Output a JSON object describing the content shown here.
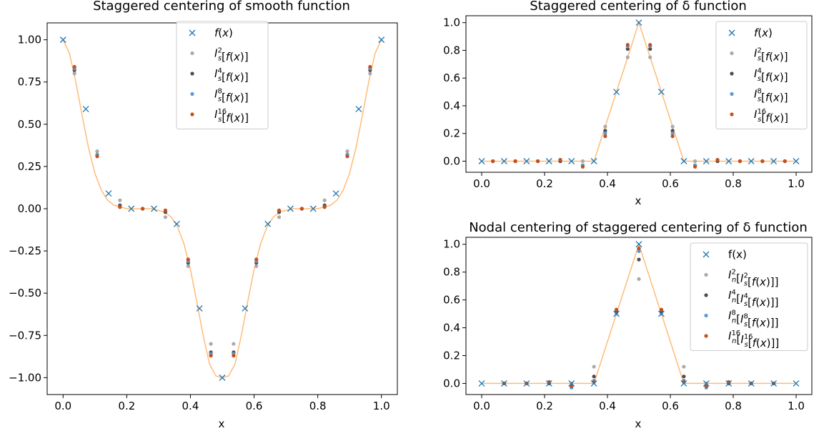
{
  "colors": {
    "curve": "#ffbb78",
    "fx": "#1f77b4",
    "lvl2": "#aaaaaa",
    "lvl4": "#4d4d4d",
    "lvl8": "#5b9bd5",
    "lvl16": "#c6501a"
  },
  "chart_data": [
    {
      "type": "scatter",
      "title": "Staggered centering of smooth function",
      "xlabel": "x",
      "ylabel": "",
      "xlim": [
        -0.05,
        1.05
      ],
      "ylim": [
        -1.1,
        1.1
      ],
      "xticks": [
        0.0,
        0.2,
        0.4,
        0.6,
        0.8,
        1.0
      ],
      "xtick_labels": [
        "0.0",
        "0.2",
        "0.4",
        "0.6",
        "0.8",
        "1.0"
      ],
      "yticks": [
        -1.0,
        -0.75,
        -0.5,
        -0.25,
        0.0,
        0.25,
        0.5,
        0.75,
        1.0
      ],
      "ytick_labels": [
        "−1.00",
        "−0.75",
        "−0.50",
        "−0.25",
        "0.00",
        "0.25",
        "0.50",
        "0.75",
        "1.00"
      ],
      "grid": false,
      "legend_position": "top-center",
      "legend": [
        "f(x)",
        "I_s^2[f(x)]",
        "I_s^4[f(x)]",
        "I_s^8[f(x)]",
        "I_s^16[f(x)]"
      ],
      "curve": {
        "x": [
          0.0,
          0.02,
          0.04,
          0.06,
          0.08,
          0.1,
          0.12,
          0.14,
          0.16,
          0.18,
          0.2,
          0.22,
          0.24,
          0.26,
          0.28,
          0.3,
          0.32,
          0.34,
          0.36,
          0.38,
          0.4,
          0.42,
          0.44,
          0.46,
          0.48,
          0.5,
          0.52,
          0.54,
          0.56,
          0.58,
          0.6,
          0.62,
          0.64,
          0.66,
          0.68,
          0.7,
          0.72,
          0.74,
          0.76,
          0.78,
          0.8,
          0.82,
          0.84,
          0.86,
          0.88,
          0.9,
          0.92,
          0.94,
          0.96,
          0.98,
          1.0
        ],
        "y": [
          1.0,
          0.92,
          0.75,
          0.55,
          0.36,
          0.21,
          0.11,
          0.05,
          0.02,
          0.01,
          0.0,
          0.0,
          0.0,
          0.0,
          0.0,
          -0.01,
          -0.02,
          -0.05,
          -0.11,
          -0.21,
          -0.36,
          -0.55,
          -0.75,
          -0.92,
          -0.99,
          -1.0,
          -0.99,
          -0.92,
          -0.75,
          -0.55,
          -0.36,
          -0.21,
          -0.11,
          -0.05,
          -0.02,
          -0.01,
          0.0,
          0.0,
          0.0,
          0.0,
          0.0,
          0.01,
          0.02,
          0.05,
          0.11,
          0.21,
          0.36,
          0.55,
          0.75,
          0.92,
          1.0
        ]
      },
      "series": [
        {
          "name": "f(x)",
          "marker": "x",
          "color_key": "fx",
          "x": [
            0.0,
            0.0714,
            0.1429,
            0.2143,
            0.2857,
            0.3571,
            0.4286,
            0.5,
            0.5714,
            0.6429,
            0.7143,
            0.7857,
            0.8571,
            0.9286,
            1.0
          ],
          "y": [
            1.0,
            0.59,
            0.09,
            0.0,
            0.0,
            -0.09,
            -0.59,
            -1.0,
            -0.59,
            -0.09,
            0.0,
            0.0,
            0.09,
            0.59,
            1.0
          ]
        },
        {
          "name": "I_s^2[f(x)]",
          "marker": "dot",
          "color_key": "lvl2",
          "x": [
            0.0357,
            0.1071,
            0.1786,
            0.25,
            0.3214,
            0.3929,
            0.4643,
            0.5357,
            0.6071,
            0.6786,
            0.75,
            0.8214,
            0.8929,
            0.9643
          ],
          "y": [
            0.8,
            0.34,
            0.05,
            0.0,
            -0.05,
            -0.34,
            -0.8,
            -0.8,
            -0.34,
            -0.05,
            0.0,
            0.05,
            0.34,
            0.8
          ]
        },
        {
          "name": "I_s^4[f(x)]",
          "marker": "dot",
          "color_key": "lvl4",
          "x": [
            0.0357,
            0.1071,
            0.1786,
            0.25,
            0.3214,
            0.3929,
            0.4643,
            0.5357,
            0.6071,
            0.6786,
            0.75,
            0.8214,
            0.8929,
            0.9643
          ],
          "y": [
            0.82,
            0.32,
            0.02,
            0.0,
            -0.02,
            -0.32,
            -0.85,
            -0.85,
            -0.32,
            -0.02,
            0.0,
            0.02,
            0.32,
            0.82
          ]
        },
        {
          "name": "I_s^8[f(x)]",
          "marker": "dot",
          "color_key": "lvl8",
          "x": [
            0.0357,
            0.1071,
            0.1786,
            0.25,
            0.3214,
            0.3929,
            0.4643,
            0.5357,
            0.6071,
            0.6786,
            0.75,
            0.8214,
            0.8929,
            0.9643
          ],
          "y": [
            0.83,
            0.32,
            0.01,
            0.0,
            -0.01,
            -0.31,
            -0.86,
            -0.86,
            -0.31,
            -0.01,
            0.0,
            0.01,
            0.32,
            0.83
          ]
        },
        {
          "name": "I_s^16[f(x)]",
          "marker": "dot",
          "color_key": "lvl16",
          "x": [
            0.0357,
            0.1071,
            0.1786,
            0.25,
            0.3214,
            0.3929,
            0.4643,
            0.5357,
            0.6071,
            0.6786,
            0.75,
            0.8214,
            0.8929,
            0.9643
          ],
          "y": [
            0.84,
            0.31,
            0.01,
            0.0,
            -0.01,
            -0.3,
            -0.87,
            -0.87,
            -0.3,
            -0.01,
            0.0,
            0.01,
            0.31,
            0.84
          ]
        }
      ]
    },
    {
      "type": "scatter",
      "title": "Staggered centering of δ function",
      "xlabel": "x",
      "ylabel": "",
      "xlim": [
        -0.05,
        1.05
      ],
      "ylim": [
        -0.08,
        1.05
      ],
      "xticks": [
        0.0,
        0.2,
        0.4,
        0.6,
        0.8,
        1.0
      ],
      "xtick_labels": [
        "0.0",
        "0.2",
        "0.4",
        "0.6",
        "0.8",
        "1.0"
      ],
      "yticks": [
        0.0,
        0.2,
        0.4,
        0.6,
        0.8,
        1.0
      ],
      "ytick_labels": [
        "0.0",
        "0.2",
        "0.4",
        "0.6",
        "0.8",
        "1.0"
      ],
      "grid": false,
      "legend_position": "top-right",
      "legend": [
        "f(x)",
        "I_s^2[f(x)]",
        "I_s^4[f(x)]",
        "I_s^8[f(x)]",
        "I_s^16[f(x)]"
      ],
      "curve": {
        "x": [
          0.0,
          0.3571,
          0.5,
          0.6429,
          1.0
        ],
        "y": [
          0.0,
          0.0,
          1.0,
          0.0,
          0.0
        ]
      },
      "series": [
        {
          "name": "f(x)",
          "marker": "x",
          "color_key": "fx",
          "x": [
            0.0,
            0.0714,
            0.1429,
            0.2143,
            0.2857,
            0.3571,
            0.4286,
            0.5,
            0.5714,
            0.6429,
            0.7143,
            0.7857,
            0.8571,
            0.9286,
            1.0
          ],
          "y": [
            0.0,
            0.0,
            0.0,
            0.0,
            0.0,
            0.0,
            0.5,
            1.0,
            0.5,
            0.0,
            0.0,
            0.0,
            0.0,
            0.0,
            0.0
          ]
        },
        {
          "name": "I_s^2[f(x)]",
          "marker": "dot",
          "color_key": "lvl2",
          "x": [
            0.0357,
            0.1071,
            0.1786,
            0.25,
            0.3214,
            0.3929,
            0.4643,
            0.5357,
            0.6071,
            0.6786,
            0.75,
            0.8214,
            0.8929,
            0.9643
          ],
          "y": [
            0.0,
            0.0,
            0.0,
            0.0,
            0.0,
            0.25,
            0.75,
            0.75,
            0.25,
            0.0,
            0.0,
            0.0,
            0.0,
            0.0
          ]
        },
        {
          "name": "I_s^4[f(x)]",
          "marker": "dot",
          "color_key": "lvl4",
          "x": [
            0.0357,
            0.1071,
            0.1786,
            0.25,
            0.3214,
            0.3929,
            0.4643,
            0.5357,
            0.6071,
            0.6786,
            0.75,
            0.8214,
            0.8929,
            0.9643
          ],
          "y": [
            0.0,
            0.0,
            0.0,
            0.0,
            -0.03,
            0.22,
            0.81,
            0.81,
            0.22,
            -0.03,
            0.0,
            0.0,
            0.0,
            0.0
          ]
        },
        {
          "name": "I_s^8[f(x)]",
          "marker": "dot",
          "color_key": "lvl8",
          "x": [
            0.0357,
            0.1071,
            0.1786,
            0.25,
            0.3214,
            0.3929,
            0.4643,
            0.5357,
            0.6071,
            0.6786,
            0.75,
            0.8214,
            0.8929,
            0.9643
          ],
          "y": [
            0.0,
            0.0,
            0.0,
            0.01,
            -0.03,
            0.2,
            0.83,
            0.83,
            0.2,
            -0.03,
            0.01,
            0.0,
            0.0,
            0.0
          ]
        },
        {
          "name": "I_s^16[f(x)]",
          "marker": "dot",
          "color_key": "lvl16",
          "x": [
            0.0357,
            0.1071,
            0.1786,
            0.25,
            0.3214,
            0.3929,
            0.4643,
            0.5357,
            0.6071,
            0.6786,
            0.75,
            0.8214,
            0.8929,
            0.9643
          ],
          "y": [
            0.0,
            0.0,
            0.0,
            0.01,
            -0.04,
            0.18,
            0.84,
            0.84,
            0.18,
            -0.04,
            0.01,
            0.0,
            0.0,
            0.0
          ]
        }
      ]
    },
    {
      "type": "scatter",
      "title": "Nodal centering of staggered centering of δ function",
      "xlabel": "x",
      "ylabel": "",
      "xlim": [
        -0.05,
        1.05
      ],
      "ylim": [
        -0.08,
        1.05
      ],
      "xticks": [
        0.0,
        0.2,
        0.4,
        0.6,
        0.8,
        1.0
      ],
      "xtick_labels": [
        "0.0",
        "0.2",
        "0.4",
        "0.6",
        "0.8",
        "1.0"
      ],
      "yticks": [
        0.0,
        0.2,
        0.4,
        0.6,
        0.8,
        1.0
      ],
      "ytick_labels": [
        "0.0",
        "0.2",
        "0.4",
        "0.6",
        "0.8",
        "1.0"
      ],
      "grid": false,
      "legend_position": "top-right",
      "legend": [
        "f(x)",
        "I_n^2[I_s^2[f(x)]]",
        "I_n^4[I_s^4[f(x)]]",
        "I_n^8[I_s^8[f(x)]]",
        "I_n^16[I_s^16[f(x)]]"
      ],
      "curve": {
        "x": [
          0.0,
          0.3571,
          0.5,
          0.6429,
          1.0
        ],
        "y": [
          0.0,
          0.0,
          1.0,
          0.0,
          0.0
        ]
      },
      "series": [
        {
          "name": "f(x)",
          "marker": "x",
          "color_key": "fx",
          "x": [
            0.0,
            0.0714,
            0.1429,
            0.2143,
            0.2857,
            0.3571,
            0.4286,
            0.5,
            0.5714,
            0.6429,
            0.7143,
            0.7857,
            0.8571,
            0.9286,
            1.0
          ],
          "y": [
            0.0,
            0.0,
            0.0,
            0.0,
            0.0,
            0.0,
            0.5,
            1.0,
            0.5,
            0.0,
            0.0,
            0.0,
            0.0,
            0.0,
            0.0
          ]
        },
        {
          "name": "I_n^2[I_s^2[f(x)]]",
          "marker": "dot",
          "color_key": "lvl2",
          "x": [
            0.0714,
            0.1429,
            0.2143,
            0.2857,
            0.3571,
            0.4286,
            0.5,
            0.5714,
            0.6429,
            0.7143,
            0.7857,
            0.8571,
            0.9286
          ],
          "y": [
            0.0,
            0.0,
            0.0,
            0.0,
            0.12,
            0.5,
            0.75,
            0.5,
            0.12,
            0.0,
            0.0,
            0.0,
            0.0
          ]
        },
        {
          "name": "I_n^4[I_s^4[f(x)]]",
          "marker": "dot",
          "color_key": "lvl4",
          "x": [
            0.0714,
            0.1429,
            0.2143,
            0.2857,
            0.3571,
            0.4286,
            0.5,
            0.5714,
            0.6429,
            0.7143,
            0.7857,
            0.8571,
            0.9286
          ],
          "y": [
            0.0,
            0.0,
            0.0,
            -0.02,
            0.05,
            0.52,
            0.89,
            0.52,
            0.05,
            -0.02,
            0.0,
            0.0,
            0.0
          ]
        },
        {
          "name": "I_n^8[I_s^8[f(x)]]",
          "marker": "dot",
          "color_key": "lvl8",
          "x": [
            0.0714,
            0.1429,
            0.2143,
            0.2857,
            0.3571,
            0.4286,
            0.5,
            0.5714,
            0.6429,
            0.7143,
            0.7857,
            0.8571,
            0.9286
          ],
          "y": [
            0.0,
            0.0,
            0.01,
            -0.03,
            0.02,
            0.53,
            0.95,
            0.53,
            0.02,
            -0.03,
            0.01,
            0.0,
            0.0
          ]
        },
        {
          "name": "I_n^16[I_s^16[f(x)]]",
          "marker": "dot",
          "color_key": "lvl16",
          "x": [
            0.0714,
            0.1429,
            0.2143,
            0.2857,
            0.3571,
            0.4286,
            0.5,
            0.5714,
            0.6429,
            0.7143,
            0.7857,
            0.8571,
            0.9286
          ],
          "y": [
            0.0,
            0.0,
            0.01,
            -0.02,
            0.01,
            0.53,
            0.97,
            0.53,
            0.01,
            -0.02,
            0.01,
            0.0,
            0.0
          ]
        }
      ]
    }
  ]
}
